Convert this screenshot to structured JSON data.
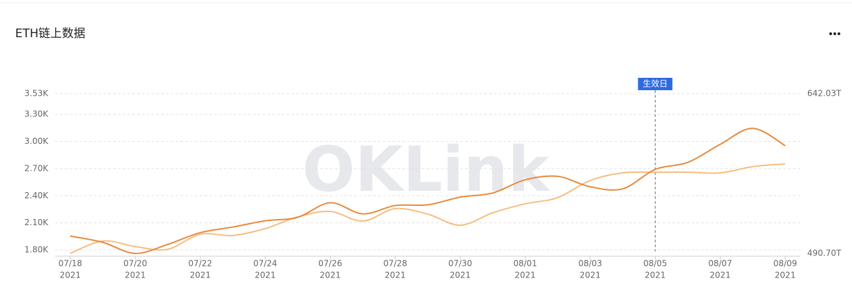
{
  "title": "ETH链上数据",
  "watermark": "OKLink",
  "chart_data": {
    "type": "line",
    "categories": [
      "07/18",
      null,
      "07/20",
      null,
      "07/22",
      null,
      "07/24",
      null,
      "07/26",
      null,
      "07/28",
      null,
      "07/30",
      null,
      "08/01",
      null,
      "08/03",
      null,
      "08/05",
      null,
      "08/07",
      null,
      "08/09"
    ],
    "year": "2021",
    "series": [
      {
        "color": "#e8893a",
        "values": [
          1954,
          1885,
          1762,
          1862,
          1992,
          2054,
          2123,
          2162,
          2323,
          2200,
          2292,
          2300,
          2385,
          2431,
          2577,
          2615,
          2500,
          2477,
          2692,
          2769,
          2969,
          3146,
          2954
        ]
      },
      {
        "color": "#f6bd7e",
        "axis": "y2",
        "values": [
          487.4,
          499.4,
          494.0,
          491.4,
          506.0,
          504.7,
          511.4,
          522.7,
          528.0,
          518.7,
          530.7,
          525.4,
          514.7,
          526.7,
          535.4,
          541.4,
          558.0,
          565.4,
          566.0,
          566.0,
          565.4,
          571.4,
          574.0
        ]
      }
    ],
    "ylim": [
      1800,
      3530
    ],
    "yticks": [
      {
        "value": 1800,
        "label": "1.80K"
      },
      {
        "value": 2100,
        "label": "2.10K"
      },
      {
        "value": 2400,
        "label": "2.40K"
      },
      {
        "value": 2700,
        "label": "2.70K"
      },
      {
        "value": 3000,
        "label": "3.00K"
      },
      {
        "value": 3300,
        "label": "3.30K"
      },
      {
        "value": 3530,
        "label": "3.53K"
      }
    ],
    "y2lim": [
      490.7,
      642.03
    ],
    "y2ticks": [
      {
        "value": 490.7,
        "label": "490.70T"
      },
      {
        "value": 642.03,
        "label": "642.03T"
      }
    ],
    "grid": true,
    "annotation": {
      "category": "08/05",
      "label": "生效日"
    }
  }
}
